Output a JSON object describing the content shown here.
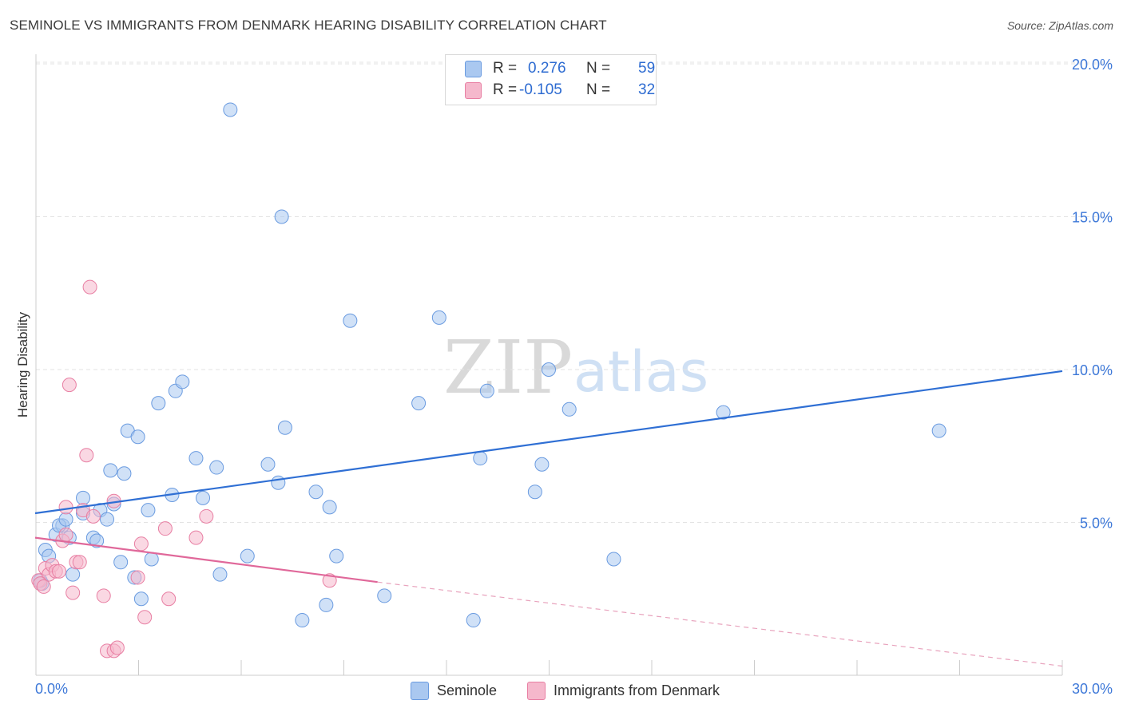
{
  "title": "SEMINOLE VS IMMIGRANTS FROM DENMARK HEARING DISABILITY CORRELATION CHART",
  "source": "Source: ZipAtlas.com",
  "watermark": {
    "zip": "ZIP",
    "atlas": "atlas"
  },
  "legend_top": {
    "rows": [
      {
        "r_key": "R =",
        "r_val": "0.276",
        "n_key": "N =",
        "n_val": "59",
        "color": "#aac8f0"
      },
      {
        "r_key": "R =",
        "r_val": "-0.105",
        "n_key": "N =",
        "n_val": "32",
        "color": "#f5b8cc"
      }
    ]
  },
  "legend_bottom": [
    {
      "label": "Seminole",
      "color": "#aac8f0"
    },
    {
      "label": "Immigrants from Denmark",
      "color": "#f5b8cc"
    }
  ],
  "chart_data": {
    "type": "scatter",
    "title": "SEMINOLE VS IMMIGRANTS FROM DENMARK HEARING DISABILITY CORRELATION CHART",
    "xlabel": "",
    "ylabel": "Hearing Disability",
    "xlim": [
      0,
      30
    ],
    "ylim": [
      0,
      20.5
    ],
    "x_tick_labels": [
      "0.0%",
      "30.0%"
    ],
    "y_tick_labels": [
      "5.0%",
      "10.0%",
      "15.0%",
      "20.0%"
    ],
    "y_ticks": [
      5,
      10,
      15,
      20
    ],
    "series": [
      {
        "name": "Seminole",
        "color": "#aac8f0",
        "stroke": "#6a9be0",
        "points": [
          [
            0.2,
            3.0
          ],
          [
            0.3,
            4.1
          ],
          [
            0.4,
            3.9
          ],
          [
            0.6,
            4.6
          ],
          [
            0.8,
            4.9
          ],
          [
            0.7,
            4.9
          ],
          [
            0.9,
            5.1
          ],
          [
            1.0,
            4.5
          ],
          [
            1.1,
            3.3
          ],
          [
            1.4,
            5.8
          ],
          [
            1.4,
            5.3
          ],
          [
            1.7,
            4.5
          ],
          [
            1.8,
            4.4
          ],
          [
            1.9,
            5.4
          ],
          [
            2.1,
            5.1
          ],
          [
            2.2,
            6.7
          ],
          [
            2.3,
            5.6
          ],
          [
            2.5,
            3.7
          ],
          [
            2.6,
            6.6
          ],
          [
            2.7,
            8.0
          ],
          [
            2.9,
            3.2
          ],
          [
            3.0,
            7.8
          ],
          [
            3.1,
            2.5
          ],
          [
            3.3,
            5.4
          ],
          [
            3.4,
            3.8
          ],
          [
            3.6,
            8.9
          ],
          [
            4.0,
            5.9
          ],
          [
            4.1,
            9.3
          ],
          [
            4.3,
            9.6
          ],
          [
            4.7,
            7.1
          ],
          [
            4.9,
            5.8
          ],
          [
            5.3,
            6.8
          ],
          [
            5.4,
            3.3
          ],
          [
            5.7,
            18.5
          ],
          [
            6.2,
            3.9
          ],
          [
            6.8,
            6.9
          ],
          [
            7.1,
            6.3
          ],
          [
            7.2,
            15.0
          ],
          [
            7.3,
            8.1
          ],
          [
            7.8,
            1.8
          ],
          [
            8.2,
            6.0
          ],
          [
            8.5,
            2.3
          ],
          [
            8.6,
            5.5
          ],
          [
            8.8,
            3.9
          ],
          [
            9.2,
            11.6
          ],
          [
            10.2,
            2.6
          ],
          [
            11.2,
            8.9
          ],
          [
            11.8,
            11.7
          ],
          [
            12.8,
            1.8
          ],
          [
            13.0,
            7.1
          ],
          [
            13.2,
            9.3
          ],
          [
            14.6,
            6.0
          ],
          [
            14.8,
            6.9
          ],
          [
            15.0,
            10.0
          ],
          [
            15.6,
            8.7
          ],
          [
            16.9,
            3.8
          ],
          [
            20.1,
            8.6
          ],
          [
            26.4,
            8.0
          ],
          [
            0.15,
            3.1
          ]
        ],
        "trend": {
          "x0": 0,
          "y0": 5.3,
          "x1": 30,
          "y1": 9.95
        }
      },
      {
        "name": "Immigrants from Denmark",
        "color": "#f5b8cc",
        "stroke": "#e87fa3",
        "points": [
          [
            0.1,
            3.1
          ],
          [
            0.3,
            3.5
          ],
          [
            0.4,
            3.3
          ],
          [
            0.5,
            3.6
          ],
          [
            0.6,
            3.4
          ],
          [
            0.7,
            3.4
          ],
          [
            0.8,
            4.4
          ],
          [
            0.9,
            5.5
          ],
          [
            0.9,
            4.6
          ],
          [
            1.0,
            9.5
          ],
          [
            1.1,
            2.7
          ],
          [
            1.2,
            3.7
          ],
          [
            1.3,
            3.7
          ],
          [
            1.4,
            5.4
          ],
          [
            1.5,
            7.2
          ],
          [
            1.6,
            12.7
          ],
          [
            1.7,
            5.2
          ],
          [
            2.0,
            2.6
          ],
          [
            2.1,
            0.8
          ],
          [
            2.3,
            0.8
          ],
          [
            2.3,
            5.7
          ],
          [
            2.4,
            0.9
          ],
          [
            3.0,
            3.2
          ],
          [
            3.1,
            4.3
          ],
          [
            3.2,
            1.9
          ],
          [
            3.8,
            4.8
          ],
          [
            3.9,
            2.5
          ],
          [
            4.7,
            4.5
          ],
          [
            5.0,
            5.2
          ],
          [
            8.6,
            3.1
          ],
          [
            0.15,
            3.0
          ],
          [
            0.25,
            2.9
          ]
        ],
        "trend": {
          "x0": 0,
          "y0": 4.5,
          "x1": 10,
          "y1": 3.05
        },
        "trend_dashed": {
          "x0": 10,
          "y0": 3.05,
          "x1": 30,
          "y1": 0.3
        }
      }
    ]
  }
}
